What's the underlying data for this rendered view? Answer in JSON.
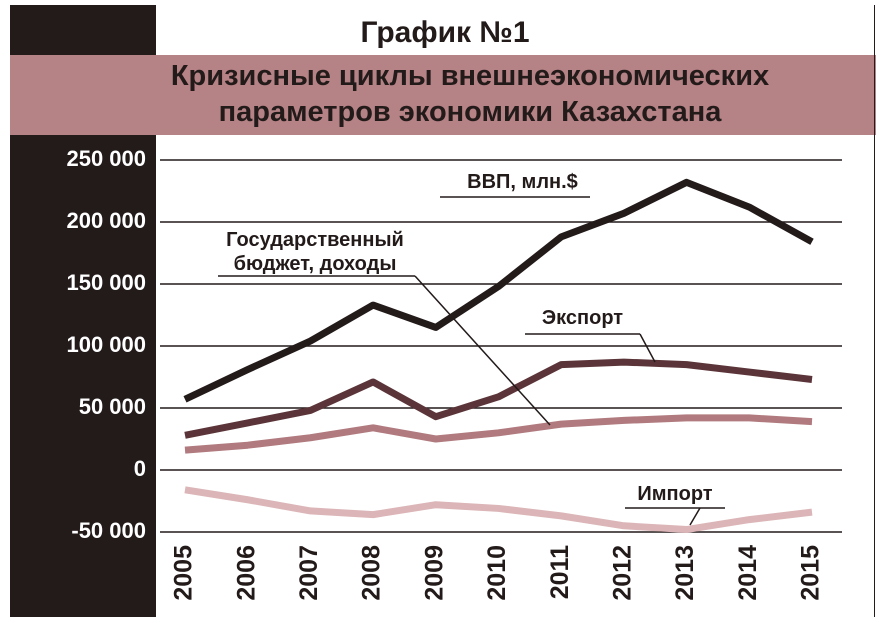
{
  "chart_data": {
    "type": "line",
    "title": "График №1",
    "subtitle": "Кризисные циклы внешнеэкономических параметров экономики Казахстана",
    "categories": [
      "2005",
      "2006",
      "2007",
      "2008",
      "2009",
      "2010",
      "2011",
      "2012",
      "2013",
      "2014",
      "2015"
    ],
    "series": [
      {
        "name": "ВВП, млн.$",
        "color": "#231a1a",
        "values": [
          57000,
          81000,
          104000,
          133000,
          115000,
          148000,
          188000,
          207000,
          232000,
          212000,
          184000
        ]
      },
      {
        "name": "Экспорт",
        "color": "#5a3438",
        "values": [
          28000,
          38000,
          48000,
          71000,
          43000,
          59000,
          85000,
          87000,
          85000,
          79000,
          73000
        ]
      },
      {
        "name": "Государственный бюджет, доходы",
        "color": "#b07a7e",
        "values": [
          16000,
          20000,
          26000,
          34000,
          25000,
          30000,
          37000,
          40000,
          42000,
          42000,
          39000
        ]
      },
      {
        "name": "Импорт",
        "color": "#dbb5b7",
        "values": [
          -16000,
          -24000,
          -33000,
          -36000,
          -28000,
          -31000,
          -37000,
          -45000,
          -48000,
          -40000,
          -34000
        ]
      }
    ],
    "ylim": [
      -50000,
      250000
    ],
    "yticks": [
      {
        "value": -50000,
        "label": "-50 000"
      },
      0,
      {
        "value": 50000,
        "label": "50 000"
      },
      {
        "value": 100000,
        "label": "100 000"
      },
      {
        "value": 150000,
        "label": "150 000"
      },
      {
        "value": 200000,
        "label": "200 000"
      },
      {
        "value": 250000,
        "label": "250 000"
      }
    ],
    "grid": true
  }
}
